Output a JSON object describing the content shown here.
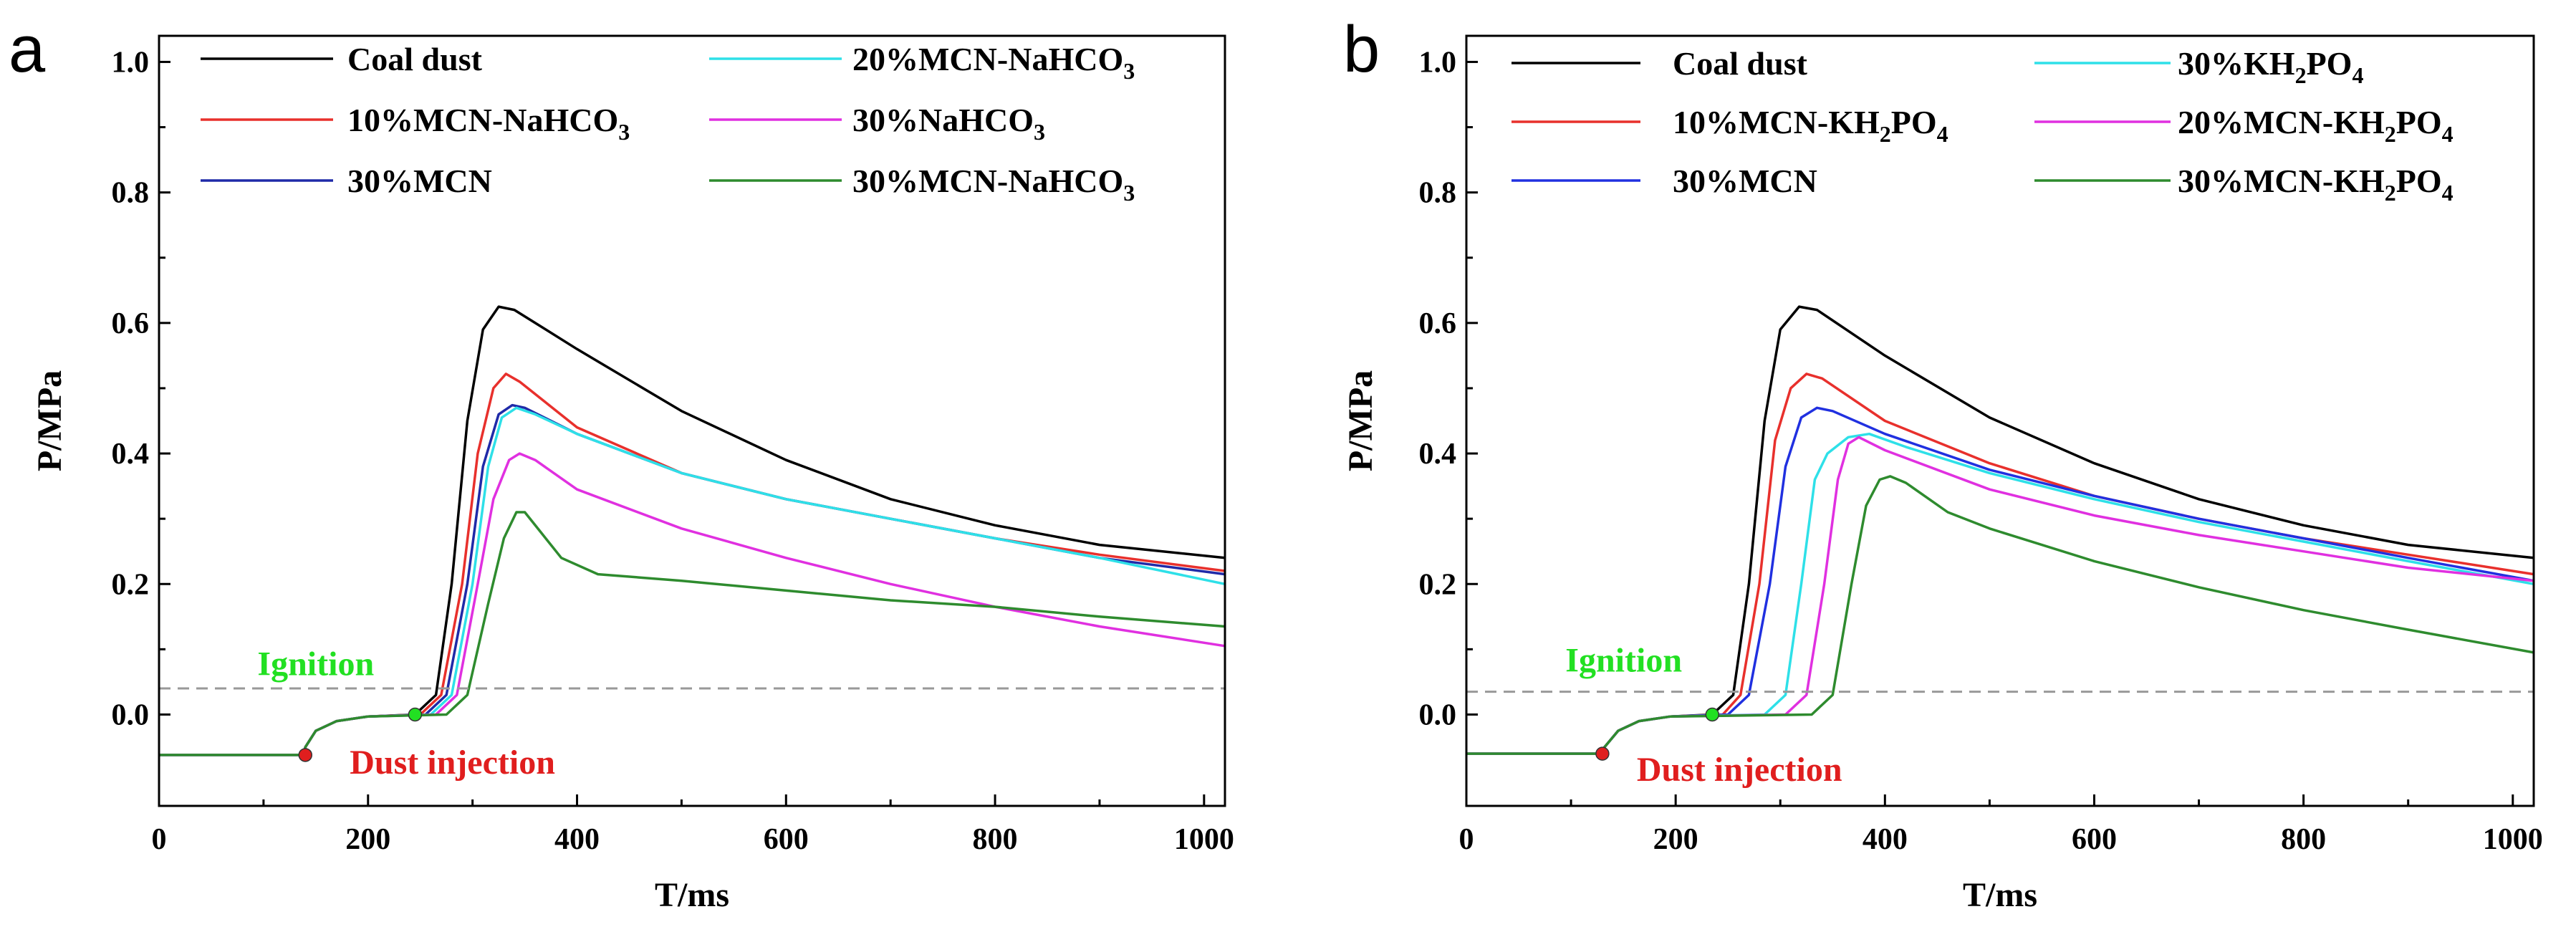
{
  "chart_data": [
    {
      "type": "line",
      "panel_label": "a",
      "xlabel": "T/ms",
      "ylabel": "P/MPa",
      "xlim": [
        0,
        1020
      ],
      "ylim": [
        -0.14,
        1.04
      ],
      "xticks": [
        "0",
        "200",
        "400",
        "600",
        "800",
        "1000"
      ],
      "yticks": [
        "0.0",
        "0.2",
        "0.4",
        "0.6",
        "0.8",
        "1.0"
      ],
      "legend_location": "top",
      "threshold_line": {
        "y": 0.04,
        "style": "dashed",
        "color": "#999999"
      },
      "annotations": [
        {
          "text": "Ignition",
          "color": "#22e022",
          "point": [
            245,
            0.0
          ]
        },
        {
          "text": "Dust injection",
          "color": "#e01e1e",
          "point": [
            140,
            -0.062
          ]
        }
      ],
      "series": [
        {
          "name": "Coal dust",
          "color": "#000000",
          "points": [
            [
              0,
              -0.062
            ],
            [
              138,
              -0.062
            ],
            [
              140,
              -0.05
            ],
            [
              150,
              -0.025
            ],
            [
              170,
              -0.01
            ],
            [
              200,
              -0.003
            ],
            [
              245,
              0.0
            ],
            [
              265,
              0.03
            ],
            [
              280,
              0.2
            ],
            [
              295,
              0.45
            ],
            [
              310,
              0.59
            ],
            [
              325,
              0.625
            ],
            [
              340,
              0.62
            ],
            [
              400,
              0.56
            ],
            [
              500,
              0.465
            ],
            [
              600,
              0.39
            ],
            [
              700,
              0.33
            ],
            [
              800,
              0.29
            ],
            [
              900,
              0.26
            ],
            [
              1020,
              0.24
            ]
          ]
        },
        {
          "name": "10%MCN-NaHCO3",
          "color": "#e8302c",
          "points": [
            [
              0,
              -0.062
            ],
            [
              138,
              -0.062
            ],
            [
              140,
              -0.05
            ],
            [
              150,
              -0.025
            ],
            [
              170,
              -0.01
            ],
            [
              200,
              -0.003
            ],
            [
              250,
              0.0
            ],
            [
              270,
              0.03
            ],
            [
              290,
              0.2
            ],
            [
              305,
              0.4
            ],
            [
              320,
              0.5
            ],
            [
              332,
              0.522
            ],
            [
              345,
              0.51
            ],
            [
              400,
              0.44
            ],
            [
              500,
              0.37
            ],
            [
              600,
              0.33
            ],
            [
              700,
              0.3
            ],
            [
              800,
              0.27
            ],
            [
              900,
              0.245
            ],
            [
              1020,
              0.22
            ]
          ]
        },
        {
          "name": "30%MCN",
          "color": "#1f2aa8",
          "points": [
            [
              0,
              -0.062
            ],
            [
              138,
              -0.062
            ],
            [
              140,
              -0.05
            ],
            [
              150,
              -0.025
            ],
            [
              170,
              -0.01
            ],
            [
              200,
              -0.003
            ],
            [
              255,
              0.0
            ],
            [
              275,
              0.03
            ],
            [
              295,
              0.2
            ],
            [
              310,
              0.38
            ],
            [
              325,
              0.46
            ],
            [
              338,
              0.474
            ],
            [
              350,
              0.47
            ],
            [
              400,
              0.43
            ],
            [
              500,
              0.37
            ],
            [
              600,
              0.33
            ],
            [
              700,
              0.3
            ],
            [
              800,
              0.27
            ],
            [
              900,
              0.24
            ],
            [
              1020,
              0.215
            ]
          ]
        },
        {
          "name": "20%MCN-NaHCO3",
          "color": "#2ee0e8",
          "points": [
            [
              0,
              -0.062
            ],
            [
              138,
              -0.062
            ],
            [
              140,
              -0.05
            ],
            [
              150,
              -0.025
            ],
            [
              170,
              -0.01
            ],
            [
              200,
              -0.003
            ],
            [
              260,
              0.0
            ],
            [
              280,
              0.03
            ],
            [
              300,
              0.2
            ],
            [
              315,
              0.38
            ],
            [
              328,
              0.455
            ],
            [
              342,
              0.47
            ],
            [
              360,
              0.46
            ],
            [
              400,
              0.43
            ],
            [
              500,
              0.37
            ],
            [
              600,
              0.33
            ],
            [
              700,
              0.3
            ],
            [
              800,
              0.27
            ],
            [
              900,
              0.24
            ],
            [
              1020,
              0.2
            ]
          ]
        },
        {
          "name": "30%NaHCO3",
          "color": "#e030e0",
          "points": [
            [
              0,
              -0.062
            ],
            [
              138,
              -0.062
            ],
            [
              140,
              -0.05
            ],
            [
              150,
              -0.025
            ],
            [
              170,
              -0.01
            ],
            [
              200,
              -0.003
            ],
            [
              265,
              0.0
            ],
            [
              285,
              0.03
            ],
            [
              305,
              0.2
            ],
            [
              320,
              0.33
            ],
            [
              335,
              0.39
            ],
            [
              345,
              0.4
            ],
            [
              360,
              0.39
            ],
            [
              400,
              0.345
            ],
            [
              500,
              0.285
            ],
            [
              600,
              0.24
            ],
            [
              700,
              0.2
            ],
            [
              800,
              0.165
            ],
            [
              900,
              0.135
            ],
            [
              1020,
              0.105
            ]
          ]
        },
        {
          "name": "30%MCN-NaHCO3",
          "color": "#2e8b2e",
          "points": [
            [
              0,
              -0.062
            ],
            [
              138,
              -0.062
            ],
            [
              140,
              -0.05
            ],
            [
              150,
              -0.025
            ],
            [
              170,
              -0.01
            ],
            [
              200,
              -0.003
            ],
            [
              275,
              0.0
            ],
            [
              295,
              0.03
            ],
            [
              315,
              0.17
            ],
            [
              330,
              0.27
            ],
            [
              342,
              0.31
            ],
            [
              350,
              0.31
            ],
            [
              365,
              0.28
            ],
            [
              385,
              0.24
            ],
            [
              420,
              0.215
            ],
            [
              500,
              0.205
            ],
            [
              600,
              0.19
            ],
            [
              700,
              0.175
            ],
            [
              800,
              0.165
            ],
            [
              900,
              0.15
            ],
            [
              1020,
              0.135
            ]
          ]
        }
      ]
    },
    {
      "type": "line",
      "panel_label": "b",
      "xlabel": "T/ms",
      "ylabel": "P/MPa",
      "xlim": [
        0,
        1020
      ],
      "ylim": [
        -0.14,
        1.04
      ],
      "xticks": [
        "0",
        "200",
        "400",
        "600",
        "800",
        "1000"
      ],
      "yticks": [
        "0.0",
        "0.2",
        "0.4",
        "0.6",
        "0.8",
        "1.0"
      ],
      "legend_location": "top",
      "threshold_line": {
        "y": 0.035,
        "style": "dashed",
        "color": "#999999"
      },
      "annotations": [
        {
          "text": "Ignition",
          "color": "#22e022",
          "point": [
            235,
            0.0
          ]
        },
        {
          "text": "Dust injection",
          "color": "#e01e1e",
          "point": [
            130,
            -0.06
          ]
        }
      ],
      "series": [
        {
          "name": "Coal dust",
          "color": "#000000",
          "points": [
            [
              0,
              -0.06
            ],
            [
              128,
              -0.06
            ],
            [
              132,
              -0.05
            ],
            [
              145,
              -0.025
            ],
            [
              165,
              -0.01
            ],
            [
              195,
              -0.003
            ],
            [
              235,
              0.0
            ],
            [
              255,
              0.03
            ],
            [
              270,
              0.2
            ],
            [
              285,
              0.45
            ],
            [
              300,
              0.59
            ],
            [
              318,
              0.625
            ],
            [
              335,
              0.62
            ],
            [
              400,
              0.55
            ],
            [
              500,
              0.455
            ],
            [
              600,
              0.385
            ],
            [
              700,
              0.33
            ],
            [
              800,
              0.29
            ],
            [
              900,
              0.26
            ],
            [
              1020,
              0.24
            ]
          ]
        },
        {
          "name": "10%MCN-KH2PO4",
          "color": "#e8302c",
          "points": [
            [
              0,
              -0.06
            ],
            [
              128,
              -0.06
            ],
            [
              132,
              -0.05
            ],
            [
              145,
              -0.025
            ],
            [
              165,
              -0.01
            ],
            [
              195,
              -0.003
            ],
            [
              245,
              0.0
            ],
            [
              262,
              0.03
            ],
            [
              280,
              0.2
            ],
            [
              295,
              0.42
            ],
            [
              310,
              0.5
            ],
            [
              325,
              0.522
            ],
            [
              340,
              0.515
            ],
            [
              400,
              0.45
            ],
            [
              500,
              0.385
            ],
            [
              600,
              0.335
            ],
            [
              700,
              0.3
            ],
            [
              800,
              0.27
            ],
            [
              900,
              0.245
            ],
            [
              1020,
              0.215
            ]
          ]
        },
        {
          "name": "30%MCN",
          "color": "#2030e0",
          "points": [
            [
              0,
              -0.06
            ],
            [
              128,
              -0.06
            ],
            [
              132,
              -0.05
            ],
            [
              145,
              -0.025
            ],
            [
              165,
              -0.01
            ],
            [
              195,
              -0.003
            ],
            [
              250,
              0.0
            ],
            [
              270,
              0.03
            ],
            [
              290,
              0.2
            ],
            [
              305,
              0.38
            ],
            [
              320,
              0.455
            ],
            [
              335,
              0.47
            ],
            [
              350,
              0.465
            ],
            [
              400,
              0.43
            ],
            [
              500,
              0.375
            ],
            [
              600,
              0.335
            ],
            [
              700,
              0.3
            ],
            [
              800,
              0.27
            ],
            [
              900,
              0.24
            ],
            [
              1020,
              0.205
            ]
          ]
        },
        {
          "name": "30%KH2PO4",
          "color": "#2ee0e8",
          "points": [
            [
              0,
              -0.06
            ],
            [
              128,
              -0.06
            ],
            [
              132,
              -0.05
            ],
            [
              145,
              -0.025
            ],
            [
              165,
              -0.01
            ],
            [
              195,
              -0.003
            ],
            [
              285,
              0.0
            ],
            [
              305,
              0.03
            ],
            [
              320,
              0.2
            ],
            [
              333,
              0.36
            ],
            [
              345,
              0.4
            ],
            [
              365,
              0.425
            ],
            [
              385,
              0.43
            ],
            [
              420,
              0.41
            ],
            [
              500,
              0.37
            ],
            [
              600,
              0.33
            ],
            [
              700,
              0.295
            ],
            [
              800,
              0.265
            ],
            [
              900,
              0.235
            ],
            [
              1020,
              0.2
            ]
          ]
        },
        {
          "name": "20%MCN-KH2PO4",
          "color": "#e030e0",
          "points": [
            [
              0,
              -0.06
            ],
            [
              128,
              -0.06
            ],
            [
              132,
              -0.05
            ],
            [
              145,
              -0.025
            ],
            [
              165,
              -0.01
            ],
            [
              195,
              -0.003
            ],
            [
              305,
              0.0
            ],
            [
              325,
              0.03
            ],
            [
              342,
              0.2
            ],
            [
              355,
              0.36
            ],
            [
              365,
              0.415
            ],
            [
              375,
              0.425
            ],
            [
              400,
              0.405
            ],
            [
              500,
              0.345
            ],
            [
              600,
              0.305
            ],
            [
              700,
              0.275
            ],
            [
              800,
              0.25
            ],
            [
              900,
              0.225
            ],
            [
              1020,
              0.205
            ]
          ]
        },
        {
          "name": "30%MCN-KH2PO4",
          "color": "#2e8b2e",
          "points": [
            [
              0,
              -0.06
            ],
            [
              128,
              -0.06
            ],
            [
              132,
              -0.05
            ],
            [
              145,
              -0.025
            ],
            [
              165,
              -0.01
            ],
            [
              195,
              -0.003
            ],
            [
              330,
              0.0
            ],
            [
              350,
              0.03
            ],
            [
              368,
              0.2
            ],
            [
              382,
              0.32
            ],
            [
              395,
              0.36
            ],
            [
              405,
              0.365
            ],
            [
              420,
              0.355
            ],
            [
              460,
              0.31
            ],
            [
              500,
              0.285
            ],
            [
              600,
              0.235
            ],
            [
              700,
              0.195
            ],
            [
              800,
              0.16
            ],
            [
              900,
              0.13
            ],
            [
              1020,
              0.095
            ]
          ]
        }
      ]
    }
  ]
}
